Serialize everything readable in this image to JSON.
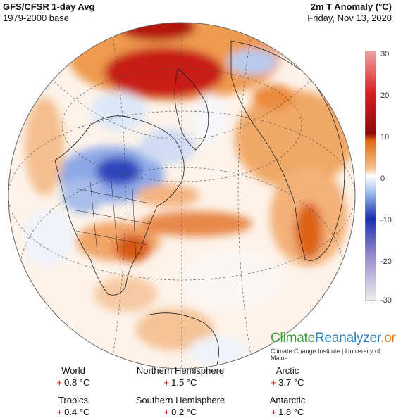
{
  "header": {
    "left_title": "GFS/CFSR 1-day Avg",
    "left_subtitle": "1979-2000 base",
    "right_title": "2m T Anomaly (°C)",
    "right_subtitle": "Friday, Nov 13, 2020"
  },
  "colorbar": {
    "ticks": [
      "30",
      "20",
      "10",
      "0",
      "-10",
      "-20",
      "-30"
    ],
    "colors": [
      "#f2a0a0",
      "#d62020",
      "#8c0a0a",
      "#e06a10",
      "#f6c090",
      "#ffffff",
      "#a8c4ee",
      "#1a30b0",
      "#a090d0",
      "#eeeeee"
    ]
  },
  "brand": {
    "part1": "Climate",
    "part2": "Reanalyzer",
    "part3": ".org",
    "subtitle": "Climate Change Institute | University of Maine"
  },
  "stats": [
    {
      "label": "World",
      "sign": "+",
      "value": "0.8 °C"
    },
    {
      "label": "Northern Hemisphere",
      "sign": "+",
      "value": "1.5 °C"
    },
    {
      "label": "Arctic",
      "sign": "+",
      "value": "3.7 °C"
    },
    {
      "label": "Tropics",
      "sign": "+",
      "value": "0.4 °C"
    },
    {
      "label": "Southern Hemisphere",
      "sign": "+",
      "value": "0.2 °C"
    },
    {
      "label": "Antarctic",
      "sign": "+",
      "value": "1.8 °C"
    }
  ]
}
